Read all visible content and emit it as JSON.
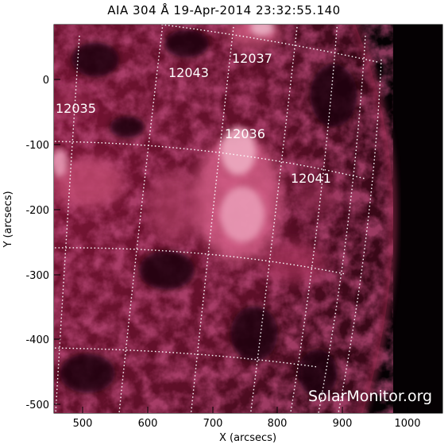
{
  "title": "AIA 304 Å 19-Apr-2014 23:32:55.140",
  "xlabel": "X (arcsecs)",
  "ylabel": "Y (arcsecs)",
  "x_ticks": [
    "500",
    "600",
    "700",
    "800",
    "900",
    "1000"
  ],
  "y_ticks": [
    "0",
    "-100",
    "-200",
    "-300",
    "-400",
    "-500"
  ],
  "regions": [
    "12037",
    "12043",
    "12035",
    "12036",
    "12041"
  ],
  "watermark": "SolarMonitor.org",
  "colors": {
    "background_space": "#070104",
    "chromosphere": "#8a1a3d",
    "bright": "#f3b6cb",
    "grid": "#ffffff"
  }
}
